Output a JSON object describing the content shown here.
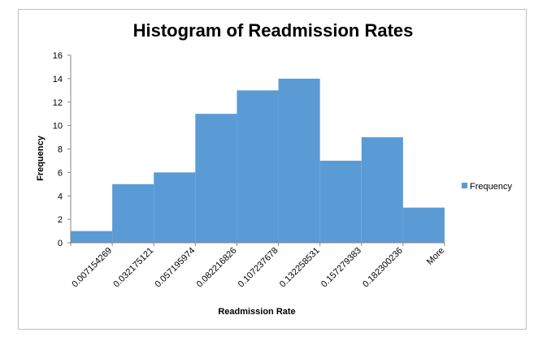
{
  "chart_data": {
    "type": "bar",
    "title": "Histogram of Readmission Rates",
    "xlabel": "Readmission Rate",
    "ylabel": "Frequency",
    "categories": [
      "0.007154269",
      "0.032175121",
      "0.057195974",
      "0.082216826",
      "0.107237678",
      "0.132258531",
      "0.157279383",
      "0.182300236",
      "More"
    ],
    "series": [
      {
        "name": "Frequency",
        "values": [
          1,
          5,
          6,
          11,
          13,
          14,
          7,
          9,
          3
        ]
      }
    ],
    "ylim": [
      0,
      16
    ],
    "yticks": [
      0,
      2,
      4,
      6,
      8,
      10,
      12,
      14,
      16
    ],
    "grid": false,
    "legend": "right",
    "colors": {
      "bar": "#5b9bd5",
      "axis": "#868686"
    }
  }
}
